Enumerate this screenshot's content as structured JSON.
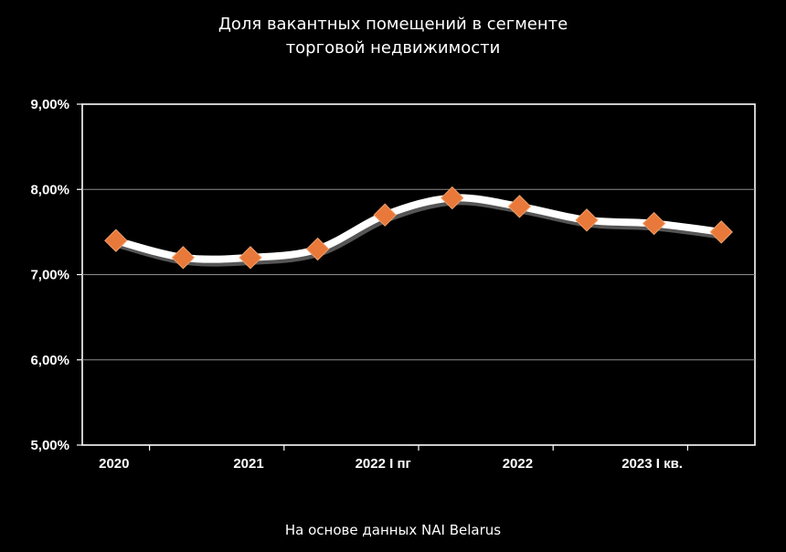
{
  "title_line1": "Доля вакантных помещений в сегменте",
  "title_line2": "торговой недвижимости",
  "source": "На основе данных NAI Belarus",
  "chart_data": {
    "type": "line",
    "title": "Доля вакантных помещений в сегменте торговой недвижимости",
    "xlabel": "",
    "ylabel": "",
    "y_tick_labels": [
      "9,00%",
      "8,00%",
      "7,00%",
      "6,00%",
      "5,00%"
    ],
    "y_ticks": [
      9,
      8,
      7,
      6,
      5
    ],
    "ylim": [
      5,
      9
    ],
    "x_tick_labels": [
      "2020",
      "2021",
      "2022 I пг",
      "2022",
      "2023 I кв."
    ],
    "x_tick_indices": [
      0,
      2,
      4,
      6,
      8
    ],
    "x_count": 10,
    "grid": true,
    "series": [
      {
        "values": [
          7.4,
          7.2,
          7.2,
          7.3,
          7.7,
          7.9,
          7.8,
          7.64,
          7.6,
          7.5
        ]
      }
    ],
    "line_color": "#ffffff",
    "marker_color": "#e8793a"
  }
}
